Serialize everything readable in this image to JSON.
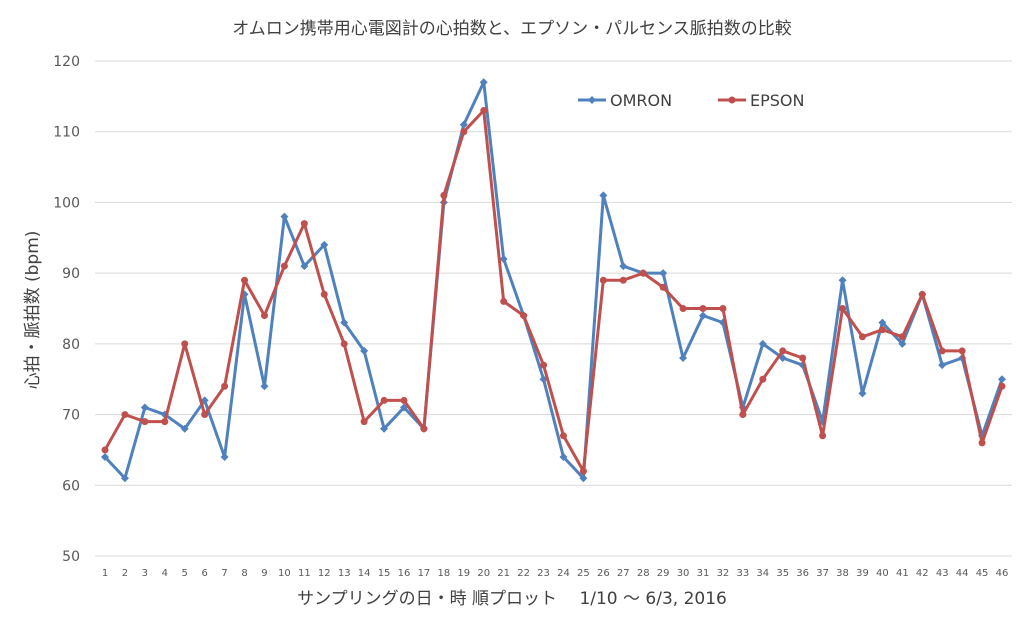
{
  "chart_data": {
    "type": "line",
    "title": "オムロン携帯用心電図計の心拍数と、エプソン・パルセンス脈拍数の比較",
    "xlabel": "サンプリングの日・時 順プロット　 1/10 ～ 6/3, 2016",
    "ylabel": "心拍・脈拍数 (bpm)",
    "ylim": [
      50,
      120
    ],
    "yticks": [
      50,
      60,
      70,
      80,
      90,
      100,
      110,
      120
    ],
    "grid": true,
    "legend_position": "top-right",
    "categories": [
      1,
      2,
      3,
      4,
      5,
      6,
      7,
      8,
      9,
      10,
      11,
      12,
      13,
      14,
      15,
      16,
      17,
      18,
      19,
      20,
      21,
      22,
      23,
      24,
      25,
      26,
      27,
      28,
      29,
      30,
      31,
      32,
      33,
      34,
      35,
      36,
      37,
      38,
      39,
      40,
      41,
      42,
      43,
      44,
      45,
      46
    ],
    "series": [
      {
        "name": "OMRON",
        "color": "#4f81bd",
        "marker": "diamond",
        "values": [
          64,
          61,
          71,
          70,
          68,
          72,
          64,
          87,
          74,
          98,
          91,
          94,
          83,
          79,
          68,
          71,
          68,
          100,
          111,
          117,
          92,
          84,
          75,
          64,
          61,
          101,
          91,
          90,
          90,
          78,
          84,
          83,
          71,
          80,
          78,
          77,
          69,
          89,
          73,
          83,
          80,
          87,
          77,
          78,
          67,
          75
        ]
      },
      {
        "name": "EPSON",
        "color": "#c0504d",
        "marker": "circle",
        "values": [
          65,
          70,
          69,
          69,
          80,
          70,
          74,
          89,
          84,
          91,
          97,
          87,
          80,
          69,
          72,
          72,
          68,
          101,
          110,
          113,
          86,
          84,
          77,
          67,
          62,
          89,
          89,
          90,
          88,
          85,
          85,
          85,
          70,
          75,
          79,
          78,
          67,
          85,
          81,
          82,
          81,
          87,
          79,
          79,
          66,
          74
        ]
      }
    ]
  }
}
